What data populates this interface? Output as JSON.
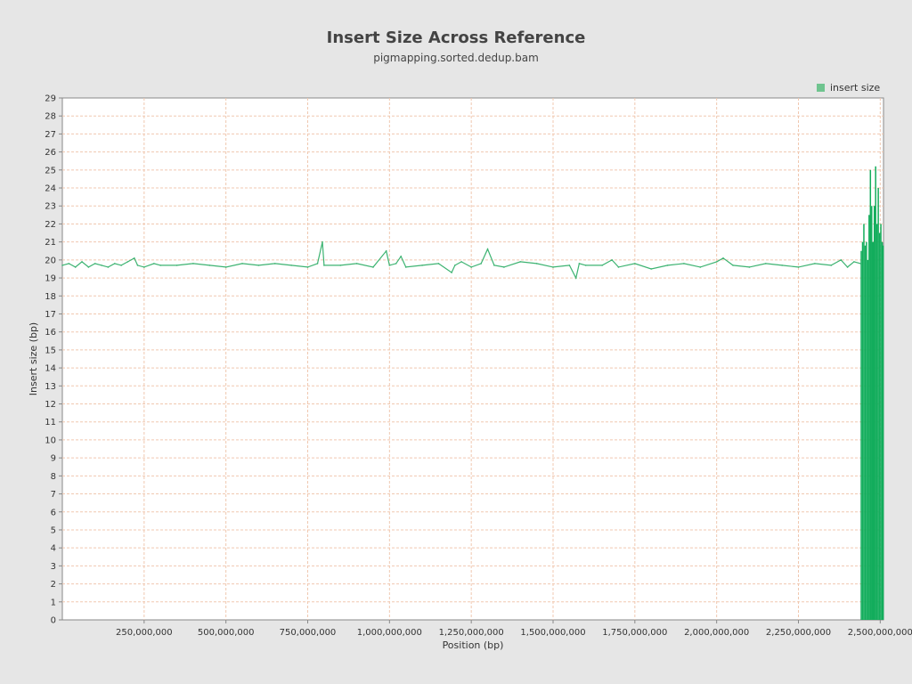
{
  "chart_data": {
    "type": "line",
    "title": "Insert Size Across Reference",
    "subtitle": "pigmapping.sorted.dedup.bam",
    "xlabel": "Position (bp)",
    "ylabel": "Insert size (bp)",
    "xlim": [
      0,
      2510000000
    ],
    "ylim": [
      0,
      29
    ],
    "grid": true,
    "legend_position": "top-right",
    "x_ticks": [
      250000000,
      500000000,
      750000000,
      1000000000,
      1250000000,
      1500000000,
      1750000000,
      2000000000,
      2250000000,
      2500000000
    ],
    "x_tick_labels": [
      "250,000,000",
      "500,000,000",
      "750,000,000",
      "1,000,000,000",
      "1,250,000,000",
      "1,500,000,000",
      "1,750,000,000",
      "2,000,000,000",
      "2,250,000,000",
      "2,500,000,000"
    ],
    "y_ticks": [
      0,
      1,
      2,
      3,
      4,
      5,
      6,
      7,
      8,
      9,
      10,
      11,
      12,
      13,
      14,
      15,
      16,
      17,
      18,
      19,
      20,
      21,
      22,
      23,
      24,
      25,
      26,
      27,
      28,
      29
    ],
    "colors": {
      "series": "#3cb371",
      "bar_fill": "#13ad5c",
      "legend_swatch": "#6fc48f",
      "grid": "#f0c8b0",
      "plot_bg": "#ffffff",
      "page_bg": "#e6e6e6"
    },
    "series": [
      {
        "name": "insert size",
        "x": [
          0,
          20000000,
          40000000,
          60000000,
          80000000,
          100000000,
          120000000,
          140000000,
          160000000,
          180000000,
          200000000,
          220000000,
          230000000,
          250000000,
          280000000,
          300000000,
          350000000,
          400000000,
          450000000,
          500000000,
          550000000,
          600000000,
          650000000,
          700000000,
          750000000,
          780000000,
          795000000,
          800000000,
          850000000,
          900000000,
          950000000,
          990000000,
          1000000000,
          1020000000,
          1035000000,
          1050000000,
          1100000000,
          1150000000,
          1190000000,
          1200000000,
          1220000000,
          1250000000,
          1280000000,
          1300000000,
          1320000000,
          1350000000,
          1400000000,
          1450000000,
          1500000000,
          1550000000,
          1570000000,
          1580000000,
          1600000000,
          1650000000,
          1680000000,
          1700000000,
          1750000000,
          1800000000,
          1850000000,
          1900000000,
          1950000000,
          2000000000,
          2020000000,
          2050000000,
          2100000000,
          2150000000,
          2200000000,
          2250000000,
          2300000000,
          2350000000,
          2380000000,
          2400000000,
          2420000000,
          2440000000
        ],
        "values": [
          19.7,
          19.8,
          19.6,
          19.9,
          19.6,
          19.8,
          19.7,
          19.6,
          19.8,
          19.7,
          19.9,
          20.1,
          19.7,
          19.6,
          19.8,
          19.7,
          19.7,
          19.8,
          19.7,
          19.6,
          19.8,
          19.7,
          19.8,
          19.7,
          19.6,
          19.8,
          21.0,
          19.7,
          19.7,
          19.8,
          19.6,
          20.5,
          19.7,
          19.8,
          20.2,
          19.6,
          19.7,
          19.8,
          19.3,
          19.7,
          19.9,
          19.6,
          19.8,
          20.6,
          19.7,
          19.6,
          19.9,
          19.8,
          19.6,
          19.7,
          19.0,
          19.8,
          19.7,
          19.7,
          20.0,
          19.6,
          19.8,
          19.5,
          19.7,
          19.8,
          19.6,
          19.9,
          20.1,
          19.7,
          19.6,
          19.8,
          19.7,
          19.6,
          19.8,
          19.7,
          20.0,
          19.6,
          19.9,
          19.8
        ]
      }
    ],
    "bars": {
      "x": [
        2442000000,
        2446000000,
        2450000000,
        2454000000,
        2458000000,
        2462000000,
        2466000000,
        2470000000,
        2474000000,
        2478000000,
        2482000000,
        2486000000,
        2490000000,
        2494000000,
        2498000000,
        2502000000,
        2506000000,
        2509000000
      ],
      "values": [
        20.5,
        21.0,
        22.0,
        20.8,
        21.0,
        20.0,
        22.5,
        25.0,
        23.0,
        21.0,
        23.0,
        25.2,
        22.0,
        24.0,
        21.5,
        22.0,
        21.0,
        20.8
      ]
    }
  }
}
